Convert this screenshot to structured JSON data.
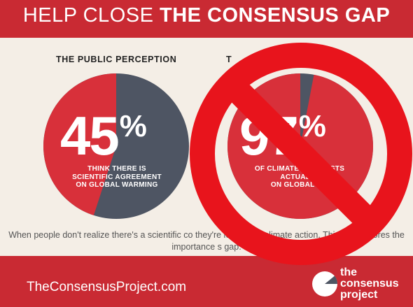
{
  "header": {
    "title_light": "HELP CLOSE ",
    "title_bold": "THE CONSENSUS GAP"
  },
  "left": {
    "label": "THE PUBLIC PERCEPTION",
    "value": "45",
    "percent_sign": "%",
    "caption": "THINK THERE IS\nSCIENTIFIC AGREEMENT\nON GLOBAL WARMING",
    "fraction": 0.45
  },
  "right": {
    "label": "T",
    "value": "97",
    "percent_sign": "%",
    "caption": "OF CLIMATE SCIENTISTS\nACTUALLY\nON GLOBAL WA",
    "fraction": 0.97
  },
  "body_text": "When people don't realize there's a scientific co               they're le               support climate action. This underscores the importance                     s gap.",
  "footer": {
    "url": "TheConsensusProject.com",
    "logo_text": "the\nconsensus\nproject"
  },
  "colors": {
    "red": "#d8303a",
    "slate": "#4e5563",
    "header": "#c92a33",
    "no_sign": "#e8141c"
  }
}
